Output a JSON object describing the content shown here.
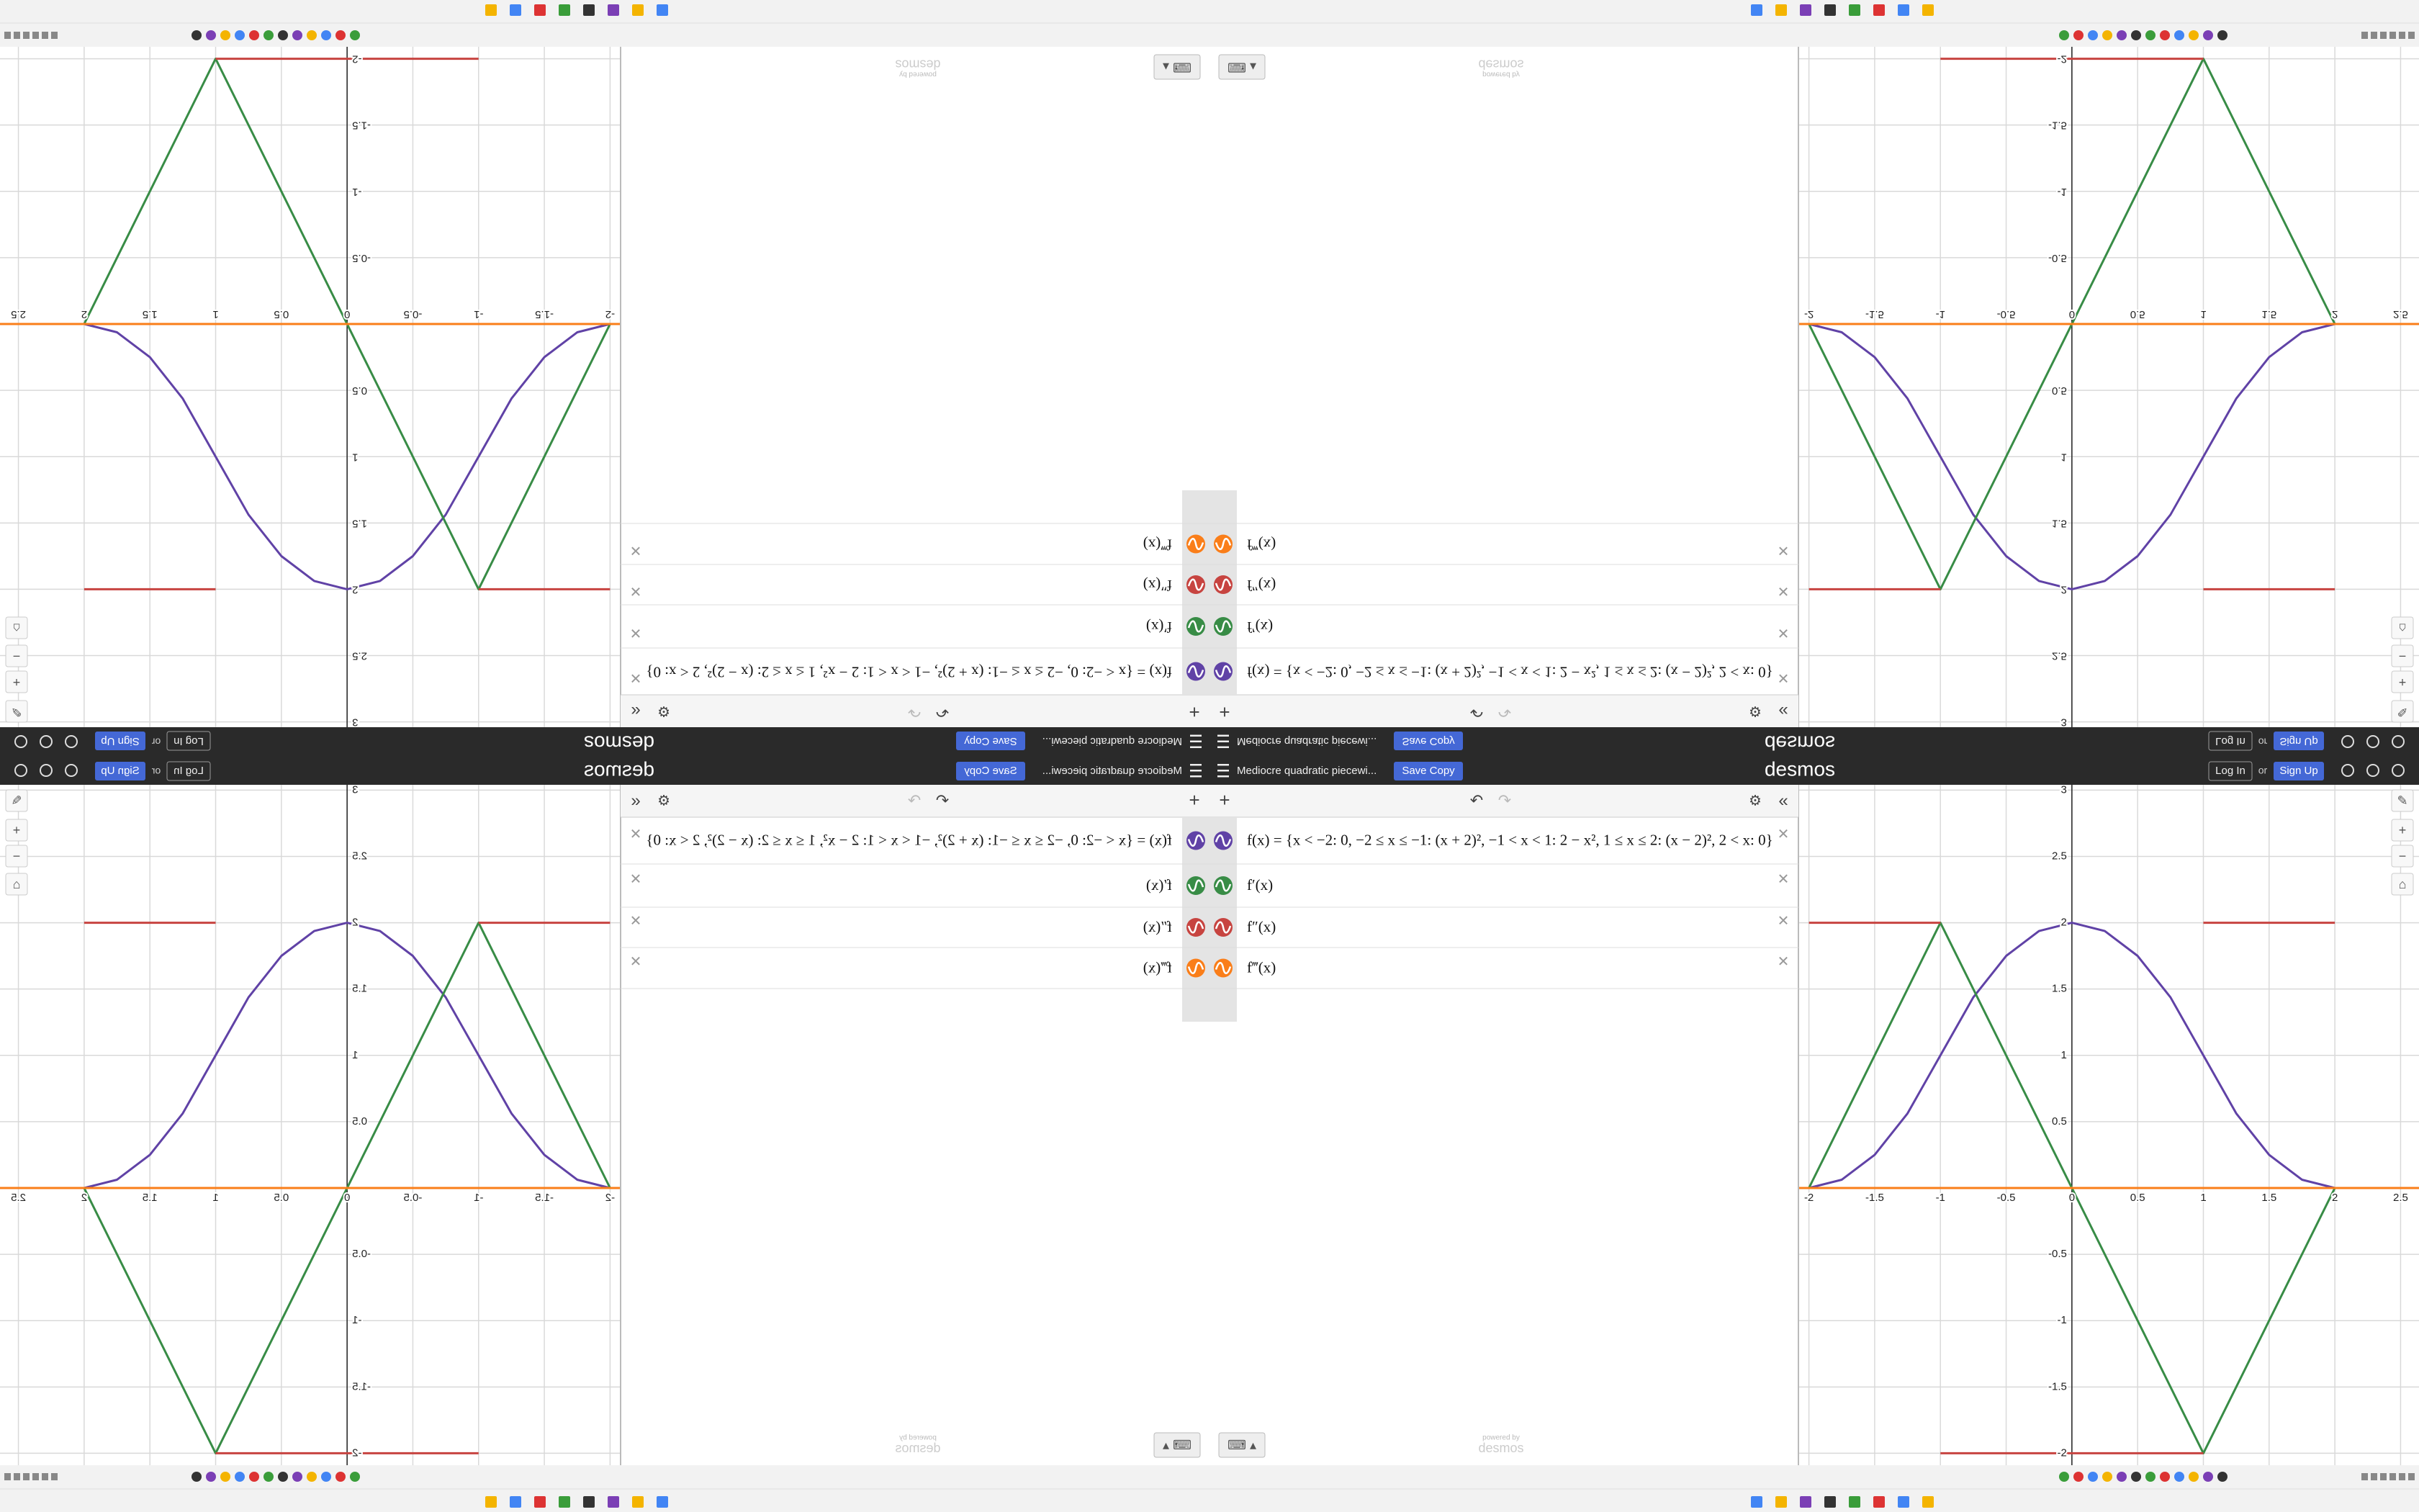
{
  "header": {
    "title": "Mediocre quadratic piecewi...",
    "save": "Save Copy",
    "logo": "desmos",
    "login": "Log In",
    "or": "or",
    "signup": "Sign Up"
  },
  "footer": {
    "powered": "powered by",
    "brand": "desmos"
  },
  "chart_data": {
    "type": "line",
    "xlim": [
      -2.08,
      2.64
    ],
    "ylim": [
      -2.09,
      3.04
    ],
    "xticks": [
      -2,
      -1.5,
      -1,
      -0.5,
      0,
      0.5,
      1,
      1.5,
      2,
      2.5
    ],
    "yticks": [
      -2,
      -1.5,
      -1,
      -0.5,
      0.5,
      1,
      1.5,
      2,
      2.5,
      3
    ],
    "grid": true,
    "series": [
      {
        "name": "f(x) = {x < −2: 0, −2 ≤ x ≤ −1: (x + 2)², −1 < x < 1: 2 − x², 1 ≤ x ≤ 2: (x − 2)², 2 < x: 0}",
        "color": "#6042a6",
        "x": [
          -2.1,
          -2,
          -1.75,
          -1.5,
          -1.25,
          -1,
          -0.75,
          -0.5,
          -0.25,
          0,
          0.25,
          0.5,
          0.75,
          1,
          1.25,
          1.5,
          1.75,
          2,
          2.7
        ],
        "values": [
          0,
          0,
          0.0625,
          0.25,
          0.5625,
          1,
          1.4375,
          1.75,
          1.9375,
          2,
          1.9375,
          1.75,
          1.4375,
          1,
          0.5625,
          0.25,
          0.0625,
          0,
          0
        ]
      },
      {
        "name": "f′(x)",
        "color": "#388c46",
        "x": [
          -2,
          -1,
          1,
          2
        ],
        "values": [
          0,
          2,
          -2,
          0
        ]
      },
      {
        "name": "f″(x)",
        "color": "#c74440",
        "x": [
          -2,
          -1,
          -1,
          -1,
          1,
          1,
          1,
          2
        ],
        "values": [
          2,
          2,
          null,
          -2,
          -2,
          null,
          2,
          2
        ]
      },
      {
        "name": "f‴(x)",
        "color": "#fa7e19",
        "x": [
          -2.1,
          2.7
        ],
        "values": [
          0,
          0
        ]
      }
    ]
  }
}
